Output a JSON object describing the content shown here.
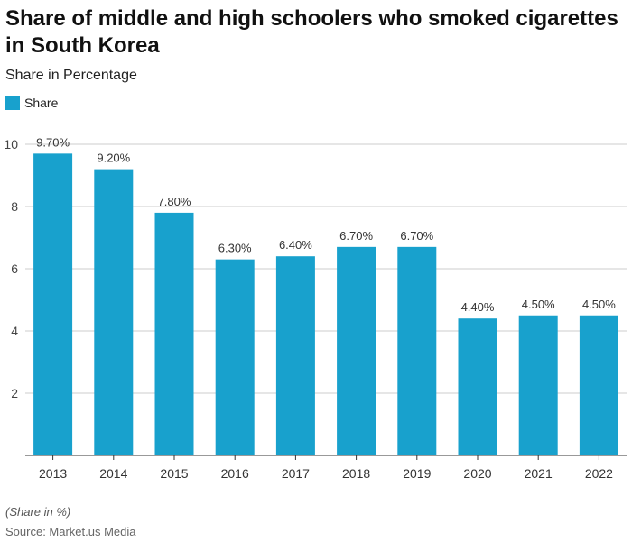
{
  "title": "Share of middle and high schoolers who smoked cigarettes in South Korea",
  "subtitle": "Share in Percentage",
  "note": "(Share in %)",
  "source": "Source: Market.us Media",
  "chart_data": {
    "type": "bar",
    "categories": [
      "2013",
      "2014",
      "2015",
      "2016",
      "2017",
      "2018",
      "2019",
      "2020",
      "2021",
      "2022"
    ],
    "series": [
      {
        "name": "Share",
        "values": [
          9.7,
          9.2,
          7.8,
          6.3,
          6.4,
          6.7,
          6.7,
          4.4,
          4.5,
          4.5
        ],
        "color": "#18a1cd"
      }
    ],
    "data_labels": [
      "9.70%",
      "9.20%",
      "7.80%",
      "6.30%",
      "6.40%",
      "6.70%",
      "6.70%",
      "4.40%",
      "4.50%",
      "4.50%"
    ],
    "yticks": [
      2,
      4,
      6,
      8,
      10
    ],
    "ylim": [
      0,
      10
    ],
    "grid": true,
    "legend": "top-left"
  }
}
